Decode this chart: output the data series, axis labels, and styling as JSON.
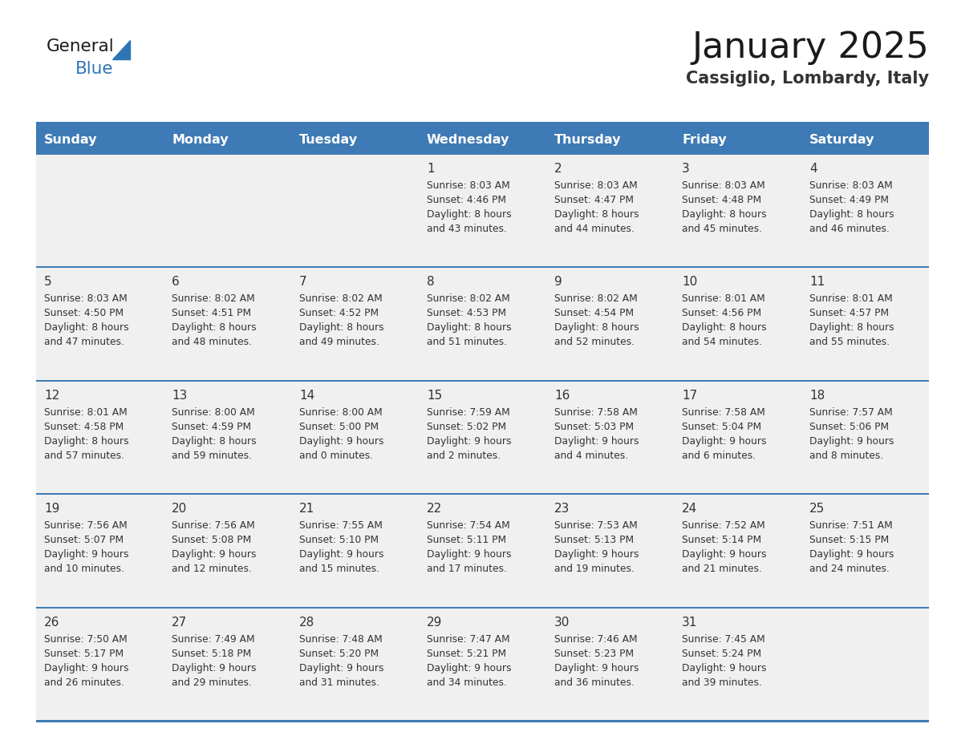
{
  "title": "January 2025",
  "subtitle": "Cassiglio, Lombardy, Italy",
  "days_of_week": [
    "Sunday",
    "Monday",
    "Tuesday",
    "Wednesday",
    "Thursday",
    "Friday",
    "Saturday"
  ],
  "header_bg": "#3E7AB5",
  "header_text_color": "#FFFFFF",
  "row_bg": "#F0F0F0",
  "cell_text_color": "#333333",
  "grid_line_color": "#3E7AB5",
  "title_color": "#1a1a1a",
  "subtitle_color": "#333333",
  "logo_general_color": "#1a1a1a",
  "logo_blue_color": "#2E75B6",
  "calendar": [
    [
      null,
      null,
      null,
      {
        "day": 1,
        "sunrise": "8:03 AM",
        "sunset": "4:46 PM",
        "daylight_line1": "Daylight: 8 hours",
        "daylight_line2": "and 43 minutes."
      },
      {
        "day": 2,
        "sunrise": "8:03 AM",
        "sunset": "4:47 PM",
        "daylight_line1": "Daylight: 8 hours",
        "daylight_line2": "and 44 minutes."
      },
      {
        "day": 3,
        "sunrise": "8:03 AM",
        "sunset": "4:48 PM",
        "daylight_line1": "Daylight: 8 hours",
        "daylight_line2": "and 45 minutes."
      },
      {
        "day": 4,
        "sunrise": "8:03 AM",
        "sunset": "4:49 PM",
        "daylight_line1": "Daylight: 8 hours",
        "daylight_line2": "and 46 minutes."
      }
    ],
    [
      {
        "day": 5,
        "sunrise": "8:03 AM",
        "sunset": "4:50 PM",
        "daylight_line1": "Daylight: 8 hours",
        "daylight_line2": "and 47 minutes."
      },
      {
        "day": 6,
        "sunrise": "8:02 AM",
        "sunset": "4:51 PM",
        "daylight_line1": "Daylight: 8 hours",
        "daylight_line2": "and 48 minutes."
      },
      {
        "day": 7,
        "sunrise": "8:02 AM",
        "sunset": "4:52 PM",
        "daylight_line1": "Daylight: 8 hours",
        "daylight_line2": "and 49 minutes."
      },
      {
        "day": 8,
        "sunrise": "8:02 AM",
        "sunset": "4:53 PM",
        "daylight_line1": "Daylight: 8 hours",
        "daylight_line2": "and 51 minutes."
      },
      {
        "day": 9,
        "sunrise": "8:02 AM",
        "sunset": "4:54 PM",
        "daylight_line1": "Daylight: 8 hours",
        "daylight_line2": "and 52 minutes."
      },
      {
        "day": 10,
        "sunrise": "8:01 AM",
        "sunset": "4:56 PM",
        "daylight_line1": "Daylight: 8 hours",
        "daylight_line2": "and 54 minutes."
      },
      {
        "day": 11,
        "sunrise": "8:01 AM",
        "sunset": "4:57 PM",
        "daylight_line1": "Daylight: 8 hours",
        "daylight_line2": "and 55 minutes."
      }
    ],
    [
      {
        "day": 12,
        "sunrise": "8:01 AM",
        "sunset": "4:58 PM",
        "daylight_line1": "Daylight: 8 hours",
        "daylight_line2": "and 57 minutes."
      },
      {
        "day": 13,
        "sunrise": "8:00 AM",
        "sunset": "4:59 PM",
        "daylight_line1": "Daylight: 8 hours",
        "daylight_line2": "and 59 minutes."
      },
      {
        "day": 14,
        "sunrise": "8:00 AM",
        "sunset": "5:00 PM",
        "daylight_line1": "Daylight: 9 hours",
        "daylight_line2": "and 0 minutes."
      },
      {
        "day": 15,
        "sunrise": "7:59 AM",
        "sunset": "5:02 PM",
        "daylight_line1": "Daylight: 9 hours",
        "daylight_line2": "and 2 minutes."
      },
      {
        "day": 16,
        "sunrise": "7:58 AM",
        "sunset": "5:03 PM",
        "daylight_line1": "Daylight: 9 hours",
        "daylight_line2": "and 4 minutes."
      },
      {
        "day": 17,
        "sunrise": "7:58 AM",
        "sunset": "5:04 PM",
        "daylight_line1": "Daylight: 9 hours",
        "daylight_line2": "and 6 minutes."
      },
      {
        "day": 18,
        "sunrise": "7:57 AM",
        "sunset": "5:06 PM",
        "daylight_line1": "Daylight: 9 hours",
        "daylight_line2": "and 8 minutes."
      }
    ],
    [
      {
        "day": 19,
        "sunrise": "7:56 AM",
        "sunset": "5:07 PM",
        "daylight_line1": "Daylight: 9 hours",
        "daylight_line2": "and 10 minutes."
      },
      {
        "day": 20,
        "sunrise": "7:56 AM",
        "sunset": "5:08 PM",
        "daylight_line1": "Daylight: 9 hours",
        "daylight_line2": "and 12 minutes."
      },
      {
        "day": 21,
        "sunrise": "7:55 AM",
        "sunset": "5:10 PM",
        "daylight_line1": "Daylight: 9 hours",
        "daylight_line2": "and 15 minutes."
      },
      {
        "day": 22,
        "sunrise": "7:54 AM",
        "sunset": "5:11 PM",
        "daylight_line1": "Daylight: 9 hours",
        "daylight_line2": "and 17 minutes."
      },
      {
        "day": 23,
        "sunrise": "7:53 AM",
        "sunset": "5:13 PM",
        "daylight_line1": "Daylight: 9 hours",
        "daylight_line2": "and 19 minutes."
      },
      {
        "day": 24,
        "sunrise": "7:52 AM",
        "sunset": "5:14 PM",
        "daylight_line1": "Daylight: 9 hours",
        "daylight_line2": "and 21 minutes."
      },
      {
        "day": 25,
        "sunrise": "7:51 AM",
        "sunset": "5:15 PM",
        "daylight_line1": "Daylight: 9 hours",
        "daylight_line2": "and 24 minutes."
      }
    ],
    [
      {
        "day": 26,
        "sunrise": "7:50 AM",
        "sunset": "5:17 PM",
        "daylight_line1": "Daylight: 9 hours",
        "daylight_line2": "and 26 minutes."
      },
      {
        "day": 27,
        "sunrise": "7:49 AM",
        "sunset": "5:18 PM",
        "daylight_line1": "Daylight: 9 hours",
        "daylight_line2": "and 29 minutes."
      },
      {
        "day": 28,
        "sunrise": "7:48 AM",
        "sunset": "5:20 PM",
        "daylight_line1": "Daylight: 9 hours",
        "daylight_line2": "and 31 minutes."
      },
      {
        "day": 29,
        "sunrise": "7:47 AM",
        "sunset": "5:21 PM",
        "daylight_line1": "Daylight: 9 hours",
        "daylight_line2": "and 34 minutes."
      },
      {
        "day": 30,
        "sunrise": "7:46 AM",
        "sunset": "5:23 PM",
        "daylight_line1": "Daylight: 9 hours",
        "daylight_line2": "and 36 minutes."
      },
      {
        "day": 31,
        "sunrise": "7:45 AM",
        "sunset": "5:24 PM",
        "daylight_line1": "Daylight: 9 hours",
        "daylight_line2": "and 39 minutes."
      },
      null
    ]
  ]
}
